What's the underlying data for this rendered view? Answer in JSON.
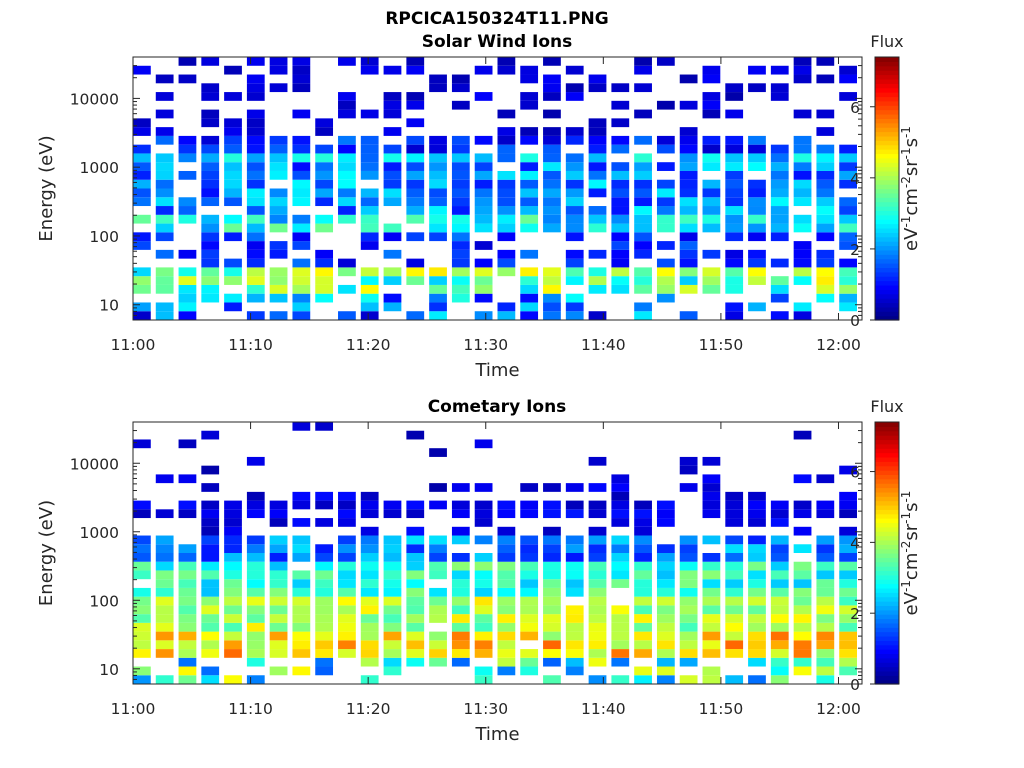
{
  "figure": {
    "title": "RPCICA150324T11.PNG"
  },
  "chart_data": [
    {
      "type": "heatmap",
      "title": "Solar Wind Ions",
      "xlabel": "Time",
      "ylabel": "Energy (eV)",
      "x_ticks": [
        "11:00",
        "11:10",
        "11:20",
        "11:30",
        "11:40",
        "11:50",
        "12:00"
      ],
      "x_range_minutes": [
        0,
        62
      ],
      "y_scale": "log",
      "y_ticks": [
        "10",
        "100",
        "1000",
        "10000"
      ],
      "y_range": [
        6,
        40000
      ],
      "colorbar": {
        "title": "Flux",
        "label": "eV-1cm-2sr-1s-1",
        "ticks": [
          "0",
          "2",
          "4",
          "6"
        ],
        "range": [
          0,
          7.4
        ],
        "colormap": "jet"
      },
      "time_bins": 32,
      "energy_bins": 30,
      "grid": false
    },
    {
      "type": "heatmap",
      "title": "Cometary Ions",
      "xlabel": "Time",
      "ylabel": "Energy (eV)",
      "x_ticks": [
        "11:00",
        "11:10",
        "11:20",
        "11:30",
        "11:40",
        "11:50",
        "12:00"
      ],
      "x_range_minutes": [
        0,
        62
      ],
      "y_scale": "log",
      "y_ticks": [
        "10",
        "100",
        "1000",
        "10000"
      ],
      "y_range": [
        6,
        40000
      ],
      "colorbar": {
        "title": "Flux",
        "label": "eV-1cm-2sr-1s-1",
        "ticks": [
          "0",
          "2",
          "4",
          "6"
        ],
        "range": [
          0,
          7.4
        ],
        "colormap": "jet"
      },
      "time_bins": 32,
      "energy_bins": 30,
      "grid": false
    }
  ]
}
